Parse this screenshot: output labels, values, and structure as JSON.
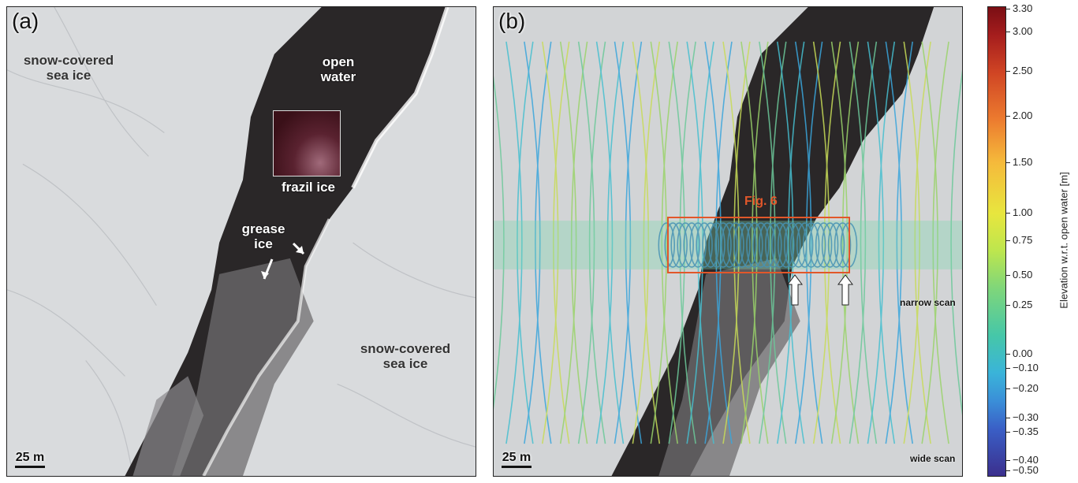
{
  "panel_a": {
    "label": "(a)",
    "text_snow_left": "snow-covered\nsea ice",
    "text_open_water": "open\nwater",
    "text_frazil": "frazil ice",
    "text_grease": "grease\nice",
    "text_snow_right": "snow-covered\nsea ice",
    "scale": "25 m"
  },
  "panel_b": {
    "label": "(b)",
    "fig_label": "Fig. 6",
    "narrow_scan": "narrow scan",
    "wide_scan": "wide scan",
    "scale": "25 m"
  },
  "colorbar": {
    "title": "Elevation w.r.t. open water [m]",
    "ticks": [
      "3.30",
      "3.00",
      "2.50",
      "2.00",
      "1.50",
      "1.00",
      "0.75",
      "0.50",
      "0.25",
      "0.00",
      "−0.10",
      "−0.20",
      "−0.30",
      "−0.35",
      "−0.40",
      "−0.50"
    ]
  }
}
